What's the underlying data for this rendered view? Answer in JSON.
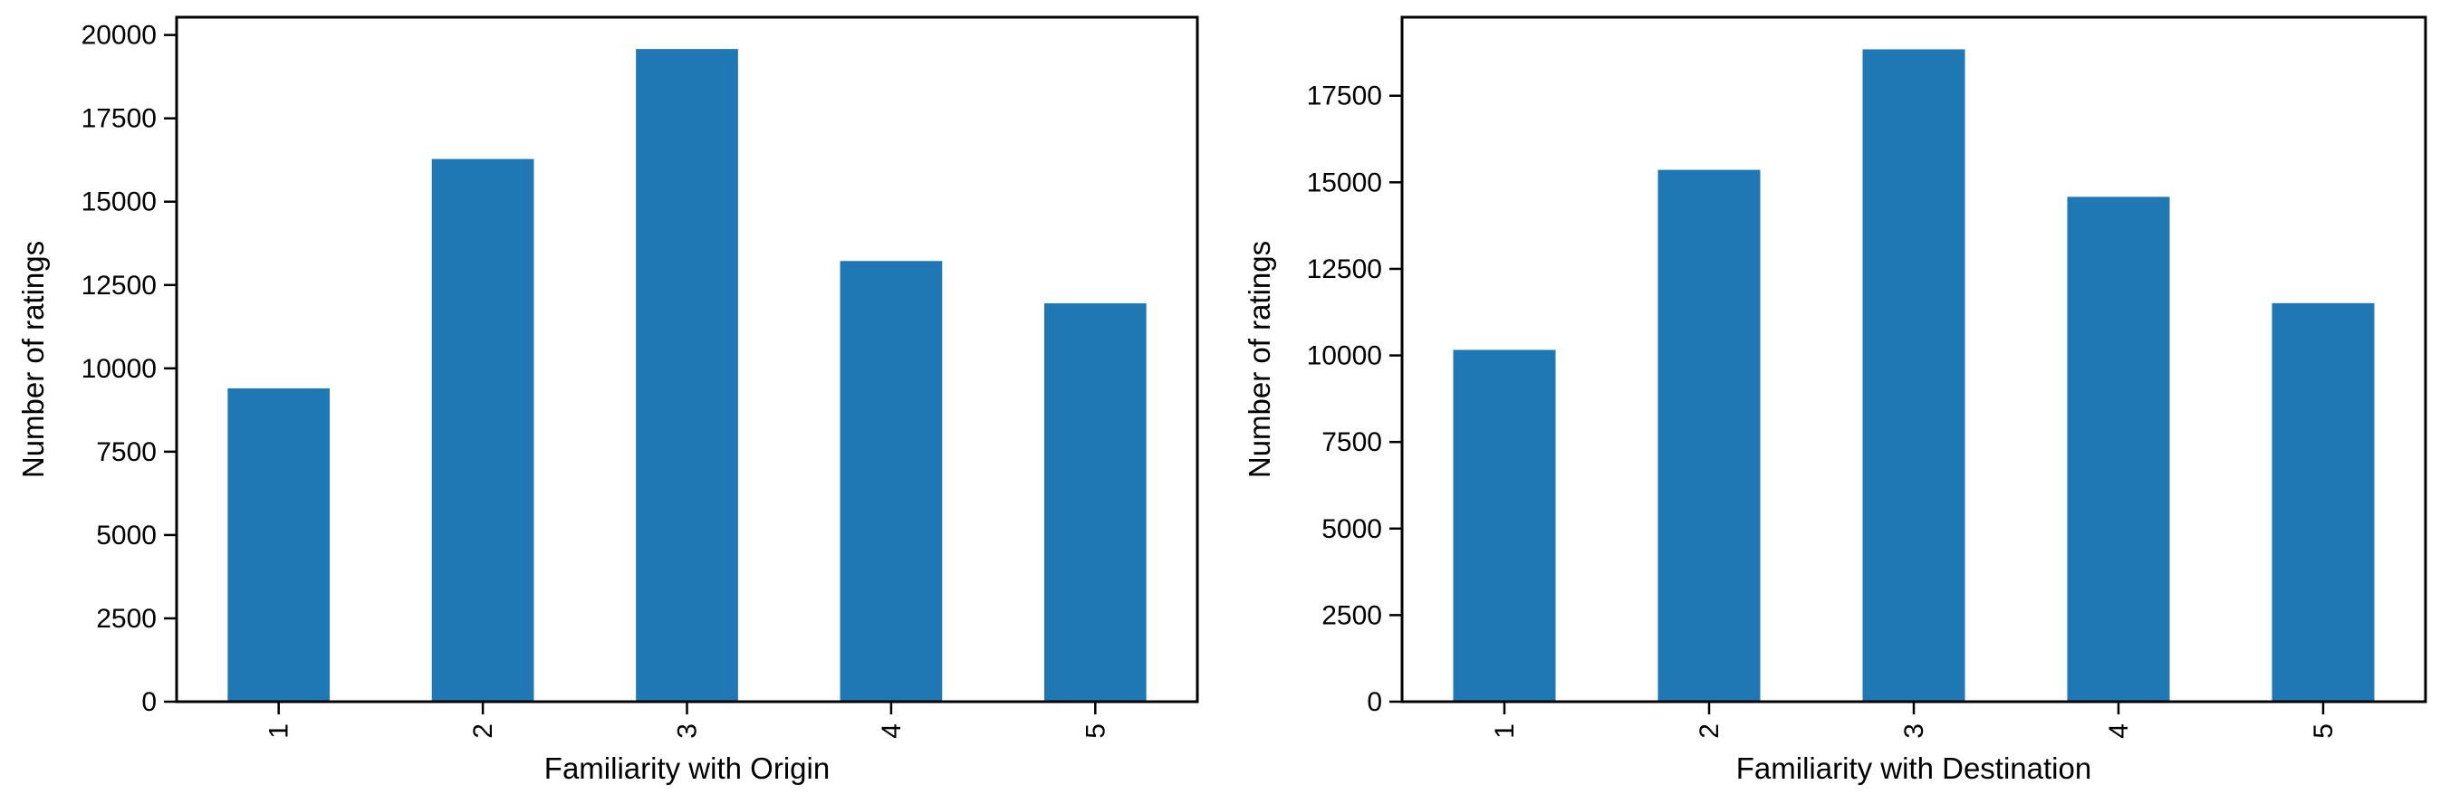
{
  "chart_data": [
    {
      "type": "bar",
      "xlabel": "Familiarity with Origin",
      "ylabel": "Number of ratings",
      "categories": [
        "1",
        "2",
        "3",
        "4",
        "5"
      ],
      "values": [
        9400,
        16280,
        19580,
        13220,
        11950
      ],
      "ylim": [
        0,
        20534
      ],
      "yticks": [
        "0",
        "2500",
        "5000",
        "7500",
        "10000",
        "12500",
        "15000",
        "17500",
        "20000"
      ],
      "bar_color": "#1f77b4",
      "grid": false,
      "legend": "none"
    },
    {
      "type": "bar",
      "xlabel": "Familiarity with Destination",
      "ylabel": "Number of ratings",
      "categories": [
        "1",
        "2",
        "3",
        "4",
        "5"
      ],
      "values": [
        10160,
        15360,
        18840,
        14580,
        11510
      ],
      "ylim": [
        0,
        19768
      ],
      "yticks": [
        "0",
        "2500",
        "5000",
        "7500",
        "10000",
        "12500",
        "15000",
        "17500"
      ],
      "bar_color": "#1f77b4",
      "grid": false,
      "legend": "none"
    }
  ]
}
